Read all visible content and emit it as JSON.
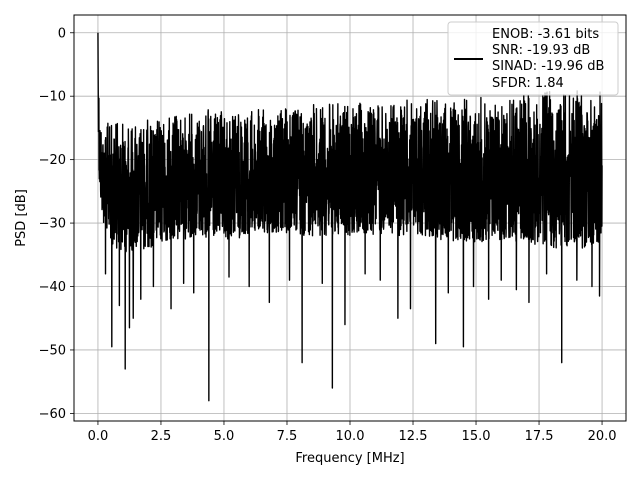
{
  "chart_data": {
    "type": "line",
    "title": "",
    "xlabel": "Frequency [MHz]",
    "ylabel": "PSD [dB]",
    "xlim": [
      -0.95,
      20.95
    ],
    "ylim": [
      -61.2,
      2.8
    ],
    "xticks": [
      0.0,
      2.5,
      5.0,
      7.5,
      10.0,
      12.5,
      15.0,
      17.5,
      20.0
    ],
    "xtick_labels": [
      "0.0",
      "2.5",
      "5.0",
      "7.5",
      "10.0",
      "12.5",
      "15.0",
      "17.5",
      "20.0"
    ],
    "yticks": [
      0,
      -10,
      -20,
      -30,
      -40,
      -50,
      -60
    ],
    "ytick_labels": [
      "0",
      "−10",
      "−20",
      "−30",
      "−40",
      "−50",
      "−60"
    ],
    "grid": true,
    "legend": {
      "placement": "top-right",
      "lines": [
        "ENOB: -3.61 bits",
        "SNR: -19.93 dB",
        "SINAD: -19.96 dB",
        "SFDR: 1.84"
      ]
    },
    "series": [
      {
        "color": "#000000",
        "envelope": {
          "x": [
            0.0,
            0.05,
            0.1,
            0.2,
            0.5,
            1.0,
            2.0,
            3.0,
            4.0,
            4.4,
            5.0,
            6.0,
            7.0,
            8.0,
            9.0,
            10.0,
            11.0,
            12.0,
            13.0,
            14.0,
            15.0,
            16.0,
            17.0,
            18.0,
            19.0,
            20.0
          ],
          "upper": [
            0.0,
            -9.0,
            -13.0,
            -14.0,
            -14.0,
            -14.0,
            -13.5,
            -13.0,
            -12.0,
            -12.0,
            -12.5,
            -12.0,
            -12.0,
            -11.5,
            -11.0,
            -11.0,
            -11.0,
            -10.5,
            -10.5,
            -10.5,
            -10.0,
            -10.0,
            -9.5,
            -9.0,
            -9.0,
            -9.0
          ],
          "lower": [
            -10.0,
            -25.0,
            -27.0,
            -30.0,
            -33.0,
            -35.0,
            -34.0,
            -33.0,
            -32.0,
            -33.0,
            -33.0,
            -32.0,
            -32.0,
            -32.0,
            -32.0,
            -32.0,
            -32.0,
            -32.0,
            -32.0,
            -33.0,
            -33.0,
            -33.0,
            -33.0,
            -34.0,
            -34.0,
            -34.0
          ]
        },
        "notches": [
          [
            0.3,
            -38.0
          ],
          [
            0.55,
            -49.5
          ],
          [
            0.85,
            -43.0
          ],
          [
            1.08,
            -53.0
          ],
          [
            1.25,
            -46.5
          ],
          [
            1.4,
            -45.0
          ],
          [
            1.7,
            -42.0
          ],
          [
            2.2,
            -40.0
          ],
          [
            2.9,
            -43.5
          ],
          [
            3.4,
            -39.5
          ],
          [
            3.8,
            -41.0
          ],
          [
            4.4,
            -58.0
          ],
          [
            5.2,
            -38.5
          ],
          [
            6.0,
            -40.0
          ],
          [
            6.8,
            -42.5
          ],
          [
            7.6,
            -39.0
          ],
          [
            8.1,
            -52.0
          ],
          [
            8.9,
            -39.5
          ],
          [
            9.3,
            -56.0
          ],
          [
            9.8,
            -46.0
          ],
          [
            10.6,
            -38.0
          ],
          [
            11.2,
            -39.0
          ],
          [
            11.9,
            -45.0
          ],
          [
            12.4,
            -43.5
          ],
          [
            13.4,
            -49.0
          ],
          [
            13.9,
            -41.0
          ],
          [
            14.5,
            -49.5
          ],
          [
            14.9,
            -40.0
          ],
          [
            15.5,
            -42.0
          ],
          [
            16.0,
            -39.0
          ],
          [
            16.6,
            -40.5
          ],
          [
            17.1,
            -42.5
          ],
          [
            17.8,
            -38.0
          ],
          [
            18.4,
            -52.0
          ],
          [
            19.0,
            -39.0
          ],
          [
            19.6,
            -40.0
          ],
          [
            19.9,
            -41.5
          ]
        ]
      }
    ]
  }
}
